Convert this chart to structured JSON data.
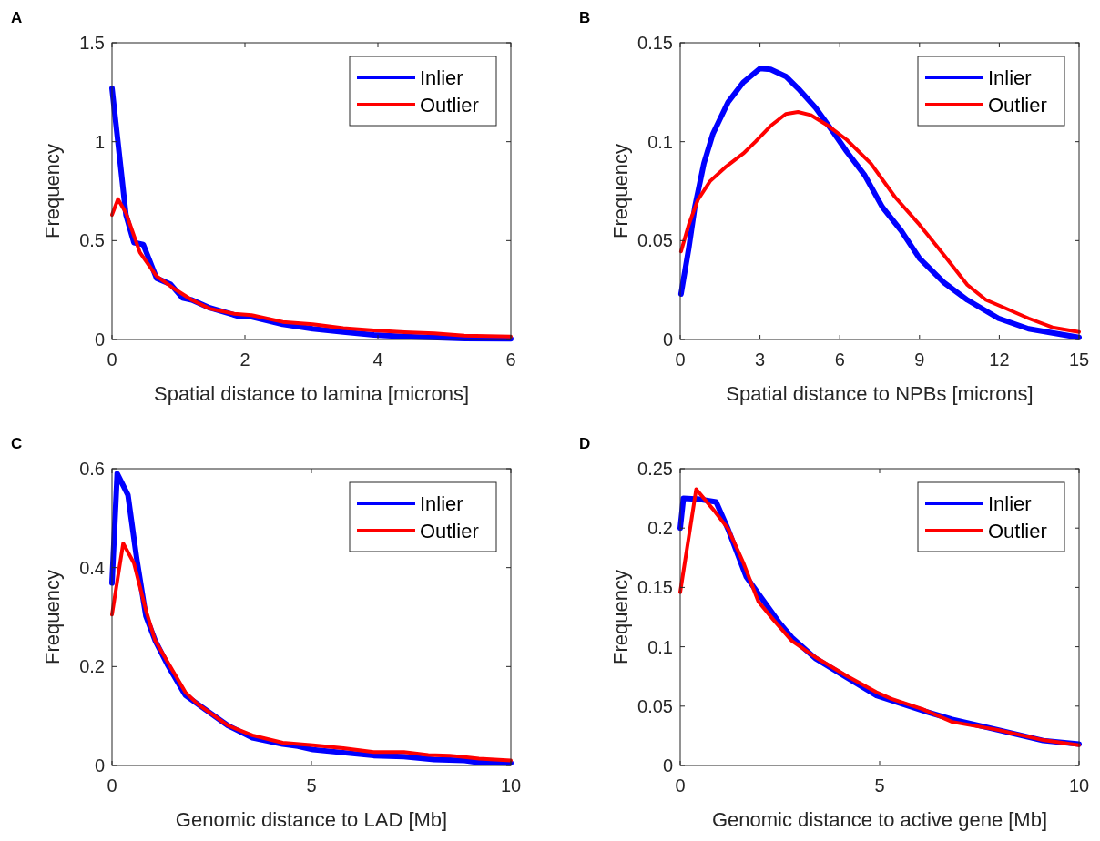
{
  "chart_data": [
    {
      "type": "line",
      "xlabel": "Spatial distance to lamina [microns]",
      "ylabel": "Frequency",
      "annotations": [
        "A"
      ],
      "xlim": [
        0,
        6
      ],
      "xticks": [
        0,
        2,
        4,
        6
      ],
      "ylim": [
        0,
        1.5
      ],
      "yticks": [
        0,
        0.5,
        1,
        1.5
      ],
      "grid": false,
      "legend": "top right",
      "series": [
        {
          "name": "Inlier",
          "color": "#0000ff",
          "x": [
            0,
            0.21,
            0.33,
            0.47,
            0.67,
            0.88,
            1.06,
            1.2,
            1.47,
            1.93,
            2.1,
            2.57,
            3.02,
            3.48,
            3.94,
            4.4,
            5.3,
            6
          ],
          "values": [
            1.27,
            0.63,
            0.49,
            0.48,
            0.31,
            0.28,
            0.21,
            0.2,
            0.16,
            0.115,
            0.115,
            0.077,
            0.054,
            0.038,
            0.023,
            0.015,
            0.005,
            0.003
          ]
        },
        {
          "name": "Outlier",
          "color": "#ff0000",
          "x": [
            0,
            0.09,
            0.21,
            0.42,
            0.67,
            0.92,
            1.2,
            1.47,
            1.84,
            2.1,
            2.57,
            3.02,
            3.48,
            3.94,
            4.4,
            4.85,
            5.3,
            6
          ],
          "values": [
            0.63,
            0.71,
            0.64,
            0.44,
            0.32,
            0.26,
            0.2,
            0.156,
            0.13,
            0.123,
            0.089,
            0.077,
            0.058,
            0.046,
            0.037,
            0.031,
            0.02,
            0.015
          ]
        }
      ]
    },
    {
      "type": "line",
      "xlabel": "Spatial distance to NPBs [microns]",
      "ylabel": "Frequency",
      "annotations": [
        "B"
      ],
      "xlim": [
        0,
        15
      ],
      "xticks": [
        0,
        3,
        6,
        9,
        12,
        15
      ],
      "ylim": [
        0,
        0.15
      ],
      "yticks": [
        0,
        0.05,
        0.1,
        0.15
      ],
      "grid": false,
      "legend": "top right",
      "series": [
        {
          "name": "Inlier",
          "color": "#0000ff",
          "x": [
            0.03,
            0.32,
            0.55,
            0.89,
            1.23,
            1.8,
            2.37,
            3,
            3.4,
            3.97,
            4.5,
            5.1,
            5.8,
            6.26,
            6.94,
            7.6,
            8.31,
            9,
            9.9,
            10.8,
            11.97,
            13.1,
            15
          ],
          "values": [
            0.023,
            0.046,
            0.067,
            0.089,
            0.104,
            0.12,
            0.13,
            0.137,
            0.1365,
            0.133,
            0.126,
            0.117,
            0.104,
            0.095,
            0.083,
            0.067,
            0.055,
            0.041,
            0.029,
            0.02,
            0.0107,
            0.0054,
            0.001
          ]
        },
        {
          "name": "Outlier",
          "color": "#ff0000",
          "x": [
            0.03,
            0.32,
            0.66,
            1.12,
            1.69,
            2.37,
            2.83,
            3.4,
            3.97,
            4.43,
            4.9,
            5.57,
            6.26,
            7.17,
            8.08,
            9,
            9.9,
            10.8,
            11.5,
            12.2,
            13.1,
            14,
            15
          ],
          "values": [
            0.0445,
            0.058,
            0.0705,
            0.08,
            0.087,
            0.094,
            0.1,
            0.108,
            0.114,
            0.115,
            0.1135,
            0.108,
            0.101,
            0.089,
            0.072,
            0.058,
            0.043,
            0.0276,
            0.02,
            0.016,
            0.0107,
            0.0061,
            0.0038
          ]
        }
      ]
    },
    {
      "type": "line",
      "xlabel": "Genomic distance to LAD [Mb]",
      "ylabel": "Frequency",
      "annotations": [
        "C"
      ],
      "xlim": [
        0,
        10
      ],
      "xticks": [
        0,
        5,
        10
      ],
      "ylim": [
        0,
        0.6
      ],
      "yticks": [
        0,
        0.2,
        0.4,
        0.6
      ],
      "grid": false,
      "legend": "top right",
      "series": [
        {
          "name": "Inlier",
          "color": "#0000ff",
          "x": [
            0,
            0.13,
            0.4,
            0.62,
            0.85,
            1.08,
            1.39,
            1.84,
            2.15,
            2.9,
            3.52,
            4.28,
            4.66,
            5.04,
            5.8,
            6.56,
            7.32,
            8.08,
            8.84,
            9.2,
            10
          ],
          "values": [
            0.369,
            0.59,
            0.547,
            0.418,
            0.302,
            0.253,
            0.204,
            0.142,
            0.124,
            0.081,
            0.056,
            0.043,
            0.039,
            0.032,
            0.026,
            0.02,
            0.018,
            0.012,
            0.01,
            0.006,
            0.005
          ]
        },
        {
          "name": "Outlier",
          "color": "#ff0000",
          "x": [
            0,
            0.28,
            0.55,
            0.85,
            1.08,
            1.39,
            1.84,
            2.15,
            2.9,
            3.52,
            4.28,
            5.04,
            5.8,
            6.56,
            7.32,
            7.93,
            8.46,
            9.2,
            10
          ],
          "values": [
            0.305,
            0.449,
            0.409,
            0.314,
            0.253,
            0.21,
            0.148,
            0.124,
            0.081,
            0.061,
            0.046,
            0.041,
            0.035,
            0.027,
            0.027,
            0.021,
            0.02,
            0.014,
            0.01
          ]
        }
      ]
    },
    {
      "type": "line",
      "xlabel": "Genomic distance to active gene [Mb]",
      "ylabel": "Frequency",
      "annotations": [
        "D"
      ],
      "xlim": [
        0,
        10
      ],
      "xticks": [
        0,
        5,
        10
      ],
      "ylim": [
        0,
        0.25
      ],
      "yticks": [
        0,
        0.05,
        0.1,
        0.15,
        0.2,
        0.25
      ],
      "grid": false,
      "legend": "top right",
      "series": [
        {
          "name": "Inlier",
          "color": "#0000ff",
          "x": [
            0,
            0.08,
            0.44,
            0.9,
            1.2,
            1.66,
            2.05,
            2.49,
            2.8,
            3.4,
            4.16,
            4.92,
            6.06,
            6.82,
            7.96,
            9.1,
            10
          ],
          "values": [
            0.2,
            0.225,
            0.2245,
            0.222,
            0.199,
            0.1587,
            0.1406,
            0.12,
            0.1077,
            0.09,
            0.0745,
            0.059,
            0.0464,
            0.0388,
            0.03,
            0.021,
            0.018
          ]
        },
        {
          "name": "Outlier",
          "color": "#ff0000",
          "x": [
            0,
            0.4,
            0.82,
            1.2,
            1.58,
            1.96,
            2.33,
            2.8,
            3.4,
            4.16,
            4.92,
            5.3,
            6.06,
            6.82,
            7.96,
            9.1,
            10
          ],
          "values": [
            0.146,
            0.2327,
            0.216,
            0.1995,
            0.171,
            0.138,
            0.123,
            0.105,
            0.091,
            0.0758,
            0.0617,
            0.0561,
            0.0477,
            0.0367,
            0.03,
            0.0214,
            0.0171
          ]
        }
      ]
    }
  ]
}
